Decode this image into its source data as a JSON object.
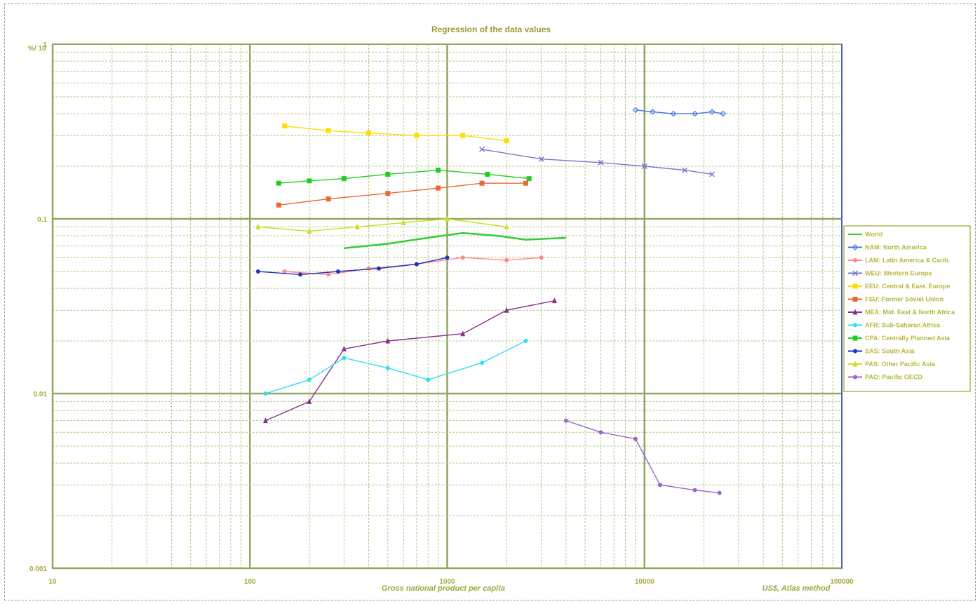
{
  "chart_data": {
    "type": "line",
    "title": "Regression of the data values",
    "xlabel": "Gross national product per capita",
    "xlabel_unit": "US$, Atlas method",
    "ylabel": "",
    "y_corner_label": "%/ 10",
    "x_scale": "log",
    "y_scale": "log",
    "xlim": [
      10,
      100000
    ],
    "ylim": [
      0.001,
      1
    ],
    "x_ticks": [
      "10",
      "100",
      "1000",
      "10000",
      "100000"
    ],
    "y_ticks": [
      "0.001",
      "0.01",
      "0.1",
      "1"
    ],
    "grid": true,
    "legend_position": "right",
    "series": [
      {
        "name": "World",
        "color": "#33cc33",
        "marker": "none",
        "points": [
          [
            300,
            0.068
          ],
          [
            500,
            0.072
          ],
          [
            800,
            0.078
          ],
          [
            1200,
            0.083
          ],
          [
            1800,
            0.08
          ],
          [
            2500,
            0.076
          ],
          [
            4000,
            0.078
          ]
        ]
      },
      {
        "name": "NAM: North America",
        "color": "#4477dd",
        "marker": "diamond",
        "points": [
          [
            9000,
            0.42
          ],
          [
            11000,
            0.41
          ],
          [
            14000,
            0.4
          ],
          [
            18000,
            0.4
          ],
          [
            22000,
            0.41
          ],
          [
            25000,
            0.4
          ]
        ]
      },
      {
        "name": "LAM: Latin America & Carib.",
        "color": "#ff8888",
        "marker": "circle",
        "points": [
          [
            150,
            0.05
          ],
          [
            250,
            0.048
          ],
          [
            400,
            0.052
          ],
          [
            700,
            0.055
          ],
          [
            1200,
            0.06
          ],
          [
            2000,
            0.058
          ],
          [
            3000,
            0.06
          ]
        ]
      },
      {
        "name": "WEU: Western Europe",
        "color": "#7777cc",
        "marker": "x",
        "points": [
          [
            1500,
            0.25
          ],
          [
            3000,
            0.22
          ],
          [
            6000,
            0.21
          ],
          [
            10000,
            0.2
          ],
          [
            16000,
            0.19
          ],
          [
            22000,
            0.18
          ]
        ]
      },
      {
        "name": "EEU: Central & East. Europe",
        "color": "#ffdd00",
        "marker": "square",
        "points": [
          [
            150,
            0.34
          ],
          [
            250,
            0.32
          ],
          [
            400,
            0.31
          ],
          [
            700,
            0.3
          ],
          [
            1200,
            0.3
          ],
          [
            2000,
            0.28
          ]
        ]
      },
      {
        "name": "FSU: Former Soviet Union",
        "color": "#ee6633",
        "marker": "square",
        "points": [
          [
            140,
            0.12
          ],
          [
            250,
            0.13
          ],
          [
            500,
            0.14
          ],
          [
            900,
            0.15
          ],
          [
            1500,
            0.16
          ],
          [
            2500,
            0.16
          ]
        ]
      },
      {
        "name": "MEA: Mid. East & North Africa",
        "color": "#883388",
        "marker": "triangle",
        "points": [
          [
            120,
            0.007
          ],
          [
            200,
            0.009
          ],
          [
            300,
            0.018
          ],
          [
            500,
            0.02
          ],
          [
            1200,
            0.022
          ],
          [
            2000,
            0.03
          ],
          [
            3500,
            0.034
          ]
        ]
      },
      {
        "name": "AFR: Sub-Saharan Africa",
        "color": "#33ddee",
        "marker": "circle",
        "points": [
          [
            120,
            0.01
          ],
          [
            200,
            0.012
          ],
          [
            300,
            0.016
          ],
          [
            500,
            0.014
          ],
          [
            800,
            0.012
          ],
          [
            1500,
            0.015
          ],
          [
            2500,
            0.02
          ]
        ]
      },
      {
        "name": "CPA: Centrally Planned Asia",
        "color": "#22cc22",
        "marker": "square",
        "points": [
          [
            140,
            0.16
          ],
          [
            200,
            0.165
          ],
          [
            300,
            0.17
          ],
          [
            500,
            0.18
          ],
          [
            900,
            0.19
          ],
          [
            1600,
            0.18
          ],
          [
            2600,
            0.17
          ]
        ]
      },
      {
        "name": "SAS: South Asia",
        "color": "#2233bb",
        "marker": "circle",
        "points": [
          [
            110,
            0.05
          ],
          [
            180,
            0.048
          ],
          [
            280,
            0.05
          ],
          [
            450,
            0.052
          ],
          [
            700,
            0.055
          ],
          [
            1000,
            0.06
          ]
        ]
      },
      {
        "name": "PAS: Other Pacific Asia",
        "color": "#ccdd22",
        "marker": "triangle",
        "points": [
          [
            110,
            0.09
          ],
          [
            200,
            0.085
          ],
          [
            350,
            0.09
          ],
          [
            600,
            0.095
          ],
          [
            1000,
            0.1
          ],
          [
            2000,
            0.09
          ]
        ]
      },
      {
        "name": "PAO: Pacific OECD",
        "color": "#9966cc",
        "marker": "circle",
        "points": [
          [
            4000,
            0.007
          ],
          [
            6000,
            0.006
          ],
          [
            9000,
            0.0055
          ],
          [
            12000,
            0.003
          ],
          [
            18000,
            0.0028
          ],
          [
            24000,
            0.0027
          ]
        ]
      }
    ]
  }
}
